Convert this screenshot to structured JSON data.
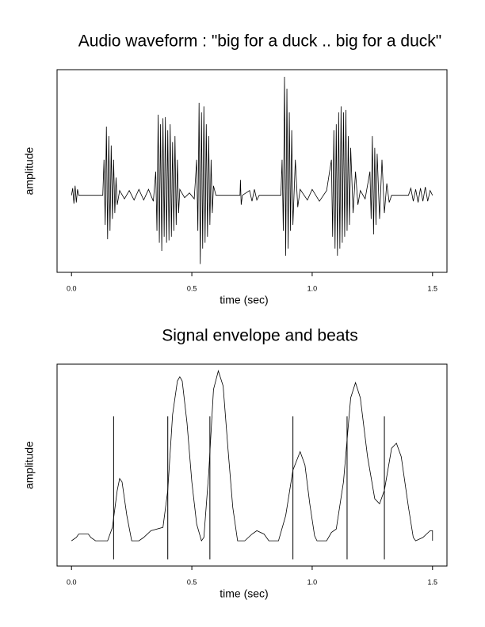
{
  "chart_data": [
    {
      "type": "line",
      "title": "Audio waveform : \"big for a duck .. big for a duck\"",
      "x_label": "time (sec)",
      "y_label": "amplitude",
      "xlim": [
        -0.06,
        1.56
      ],
      "ylim": [
        -0.65,
        1.06
      ],
      "xticks": [
        {
          "value": 0,
          "label": "0.0"
        },
        0.5,
        {
          "value": 1,
          "label": "1.0"
        },
        1.5
      ],
      "color": "#000000",
      "x": [
        0,
        0.005,
        0.01,
        0.015,
        0.02,
        0.025,
        0.03,
        0.13,
        0.135,
        0.14,
        0.145,
        0.15,
        0.155,
        0.16,
        0.165,
        0.17,
        0.175,
        0.18,
        0.185,
        0.19,
        0.2,
        0.22,
        0.24,
        0.26,
        0.28,
        0.3,
        0.32,
        0.34,
        0.35,
        0.355,
        0.36,
        0.365,
        0.37,
        0.375,
        0.38,
        0.385,
        0.39,
        0.395,
        0.4,
        0.405,
        0.41,
        0.415,
        0.42,
        0.425,
        0.43,
        0.435,
        0.44,
        0.445,
        0.45,
        0.47,
        0.49,
        0.51,
        0.52,
        0.525,
        0.53,
        0.535,
        0.54,
        0.545,
        0.55,
        0.555,
        0.56,
        0.565,
        0.57,
        0.575,
        0.58,
        0.585,
        0.59,
        0.6,
        0.7,
        0.702,
        0.705,
        0.71,
        0.74,
        0.75,
        0.76,
        0.77,
        0.78,
        0.87,
        0.875,
        0.88,
        0.885,
        0.89,
        0.895,
        0.9,
        0.905,
        0.91,
        0.915,
        0.92,
        0.93,
        0.94,
        0.95,
        0.98,
        1.0,
        1.03,
        1.06,
        1.08,
        1.085,
        1.09,
        1.095,
        1.1,
        1.105,
        1.11,
        1.115,
        1.12,
        1.125,
        1.13,
        1.135,
        1.14,
        1.145,
        1.15,
        1.155,
        1.16,
        1.17,
        1.18,
        1.19,
        1.2,
        1.22,
        1.24,
        1.245,
        1.25,
        1.255,
        1.26,
        1.265,
        1.27,
        1.28,
        1.29,
        1.3,
        1.31,
        1.32,
        1.33,
        1.4,
        1.41,
        1.42,
        1.43,
        1.44,
        1.45,
        1.46,
        1.47,
        1.48,
        1.49,
        1.5
      ],
      "values": [
        0,
        0.06,
        -0.07,
        0.08,
        -0.06,
        0.05,
        0,
        0,
        0.3,
        -0.25,
        0.58,
        -0.37,
        0.5,
        -0.3,
        0.42,
        -0.2,
        0.3,
        -0.15,
        0.15,
        -0.08,
        0.04,
        -0.03,
        0.04,
        -0.04,
        0.05,
        -0.04,
        0.05,
        -0.05,
        0.2,
        -0.3,
        0.68,
        -0.4,
        0.6,
        -0.47,
        0.65,
        -0.35,
        0.66,
        -0.4,
        0.55,
        -0.38,
        0.6,
        -0.35,
        0.45,
        -0.3,
        0.5,
        -0.25,
        0.3,
        -0.15,
        0.05,
        -0.02,
        0.02,
        -0.03,
        0.3,
        -0.3,
        0.78,
        -0.58,
        0.7,
        -0.45,
        0.75,
        -0.4,
        0.6,
        -0.35,
        0.5,
        -0.25,
        0.3,
        -0.15,
        0.08,
        0,
        0,
        0.13,
        -0.08,
        0,
        0.04,
        -0.05,
        0.05,
        -0.04,
        0,
        0,
        0.3,
        -0.3,
        1.0,
        -0.51,
        0.9,
        -0.45,
        0.7,
        -0.3,
        0.55,
        -0.25,
        0.3,
        -0.1,
        0.05,
        -0.04,
        0.05,
        -0.05,
        0.04,
        0.3,
        -0.35,
        0.55,
        -0.45,
        0.6,
        -0.51,
        0.7,
        -0.45,
        0.75,
        -0.4,
        0.7,
        -0.35,
        0.72,
        -0.3,
        0.5,
        -0.25,
        0.4,
        -0.15,
        0.2,
        -0.08,
        0.04,
        -0.03,
        0.2,
        -0.2,
        0.5,
        -0.33,
        0.4,
        -0.25,
        0.35,
        -0.2,
        0.3,
        -0.15,
        0.1,
        -0.06,
        0,
        0,
        0.06,
        -0.05,
        0.05,
        -0.06,
        0.06,
        -0.05,
        0.07,
        -0.05,
        0.04,
        0
      ]
    },
    {
      "type": "line",
      "title": "Signal envelope and beats",
      "x_label": "time (sec)",
      "y_label": "amplitude",
      "xlim": [
        -0.06,
        1.56
      ],
      "ylim": [
        -0.15,
        1.05
      ],
      "xticks": [
        {
          "value": 0,
          "label": "0.0"
        },
        0.5,
        {
          "value": 1,
          "label": "1.0"
        },
        1.5
      ],
      "color": "#000000",
      "x": [
        0,
        0.02,
        0.03,
        0.07,
        0.08,
        0.1,
        0.15,
        0.17,
        0.19,
        0.2,
        0.21,
        0.23,
        0.25,
        0.28,
        0.3,
        0.33,
        0.38,
        0.4,
        0.42,
        0.44,
        0.45,
        0.46,
        0.48,
        0.5,
        0.52,
        0.54,
        0.55,
        0.57,
        0.59,
        0.61,
        0.63,
        0.65,
        0.67,
        0.69,
        0.72,
        0.75,
        0.77,
        0.8,
        0.82,
        0.86,
        0.89,
        0.92,
        0.95,
        0.97,
        0.99,
        1.01,
        1.02,
        1.06,
        1.08,
        1.1,
        1.13,
        1.16,
        1.18,
        1.2,
        1.23,
        1.26,
        1.28,
        1.3,
        1.33,
        1.35,
        1.37,
        1.4,
        1.42,
        1.43,
        1.46,
        1.49,
        1.5,
        1.5
      ],
      "values": [
        0,
        0.02,
        0.04,
        0.04,
        0.02,
        0,
        0,
        0.08,
        0.3,
        0.37,
        0.35,
        0.15,
        0,
        0,
        0.02,
        0.06,
        0.08,
        0.3,
        0.75,
        0.95,
        0.975,
        0.95,
        0.7,
        0.35,
        0.1,
        0,
        0.02,
        0.4,
        0.9,
        1.01,
        0.92,
        0.55,
        0.2,
        0,
        0,
        0.04,
        0.06,
        0.04,
        0,
        0,
        0.15,
        0.42,
        0.53,
        0.45,
        0.22,
        0.03,
        0,
        0,
        0.05,
        0.07,
        0.35,
        0.85,
        0.94,
        0.85,
        0.5,
        0.25,
        0.22,
        0.3,
        0.55,
        0.58,
        0.5,
        0.2,
        0.02,
        0,
        0.02,
        0.06,
        0.06,
        0
      ],
      "beats": [
        0.175,
        0.4,
        0.575,
        0.92,
        1.145,
        1.3
      ],
      "beat_range": [
        -0.11,
        0.74
      ]
    }
  ]
}
